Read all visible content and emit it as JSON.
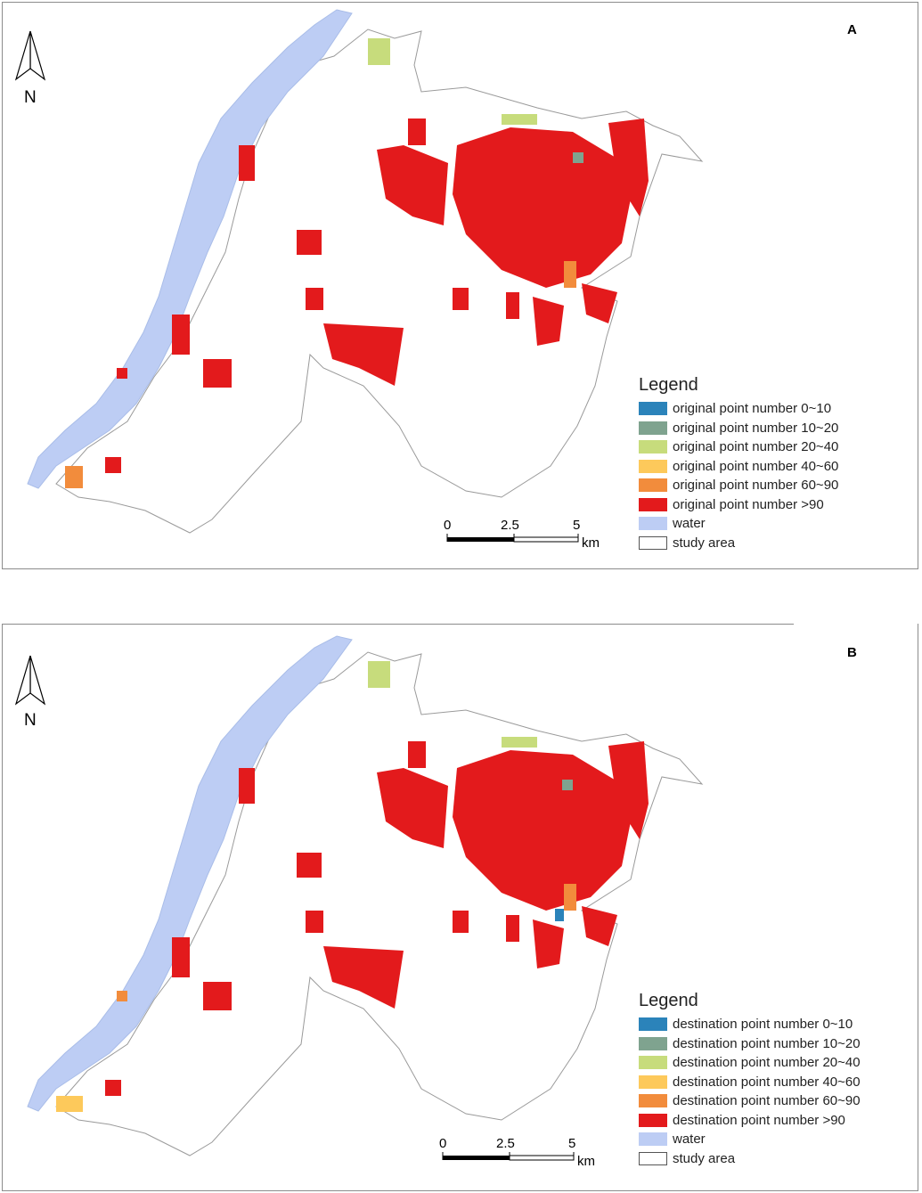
{
  "panels": [
    {
      "label": "A",
      "north_letter": "N",
      "legend": {
        "title": "Legend",
        "items": [
          {
            "label": "original point number 0~10",
            "color": "#2b83ba"
          },
          {
            "label": "original point number 10~20",
            "color": "#7fa38f"
          },
          {
            "label": "original point number 20~40",
            "color": "#c7dc7c"
          },
          {
            "label": "original point number 40~60",
            "color": "#fdc95b"
          },
          {
            "label": "original point number 60~90",
            "color": "#f28c3c"
          },
          {
            "label": "original point number >90",
            "color": "#e31a1c"
          },
          {
            "label": "water",
            "color": "#bdcdf4"
          },
          {
            "label": "study area",
            "color": "#ffffff"
          }
        ]
      },
      "scale": {
        "ticks": [
          "0",
          "2.5",
          "5"
        ],
        "unit": "km"
      }
    },
    {
      "label": "B",
      "north_letter": "N",
      "legend": {
        "title": "Legend",
        "items": [
          {
            "label": "destination point number 0~10",
            "color": "#2b83ba"
          },
          {
            "label": "destination point number 10~20",
            "color": "#7fa38f"
          },
          {
            "label": "destination point number 20~40",
            "color": "#c7dc7c"
          },
          {
            "label": "destination point number 40~60",
            "color": "#fdc95b"
          },
          {
            "label": "destination point number 60~90",
            "color": "#f28c3c"
          },
          {
            "label": "destination point number >90",
            "color": "#e31a1c"
          },
          {
            "label": "water",
            "color": "#bdcdf4"
          },
          {
            "label": "study area",
            "color": "#ffffff"
          }
        ]
      },
      "scale": {
        "ticks": [
          "0",
          "2.5",
          "5"
        ],
        "unit": "km"
      }
    }
  ]
}
